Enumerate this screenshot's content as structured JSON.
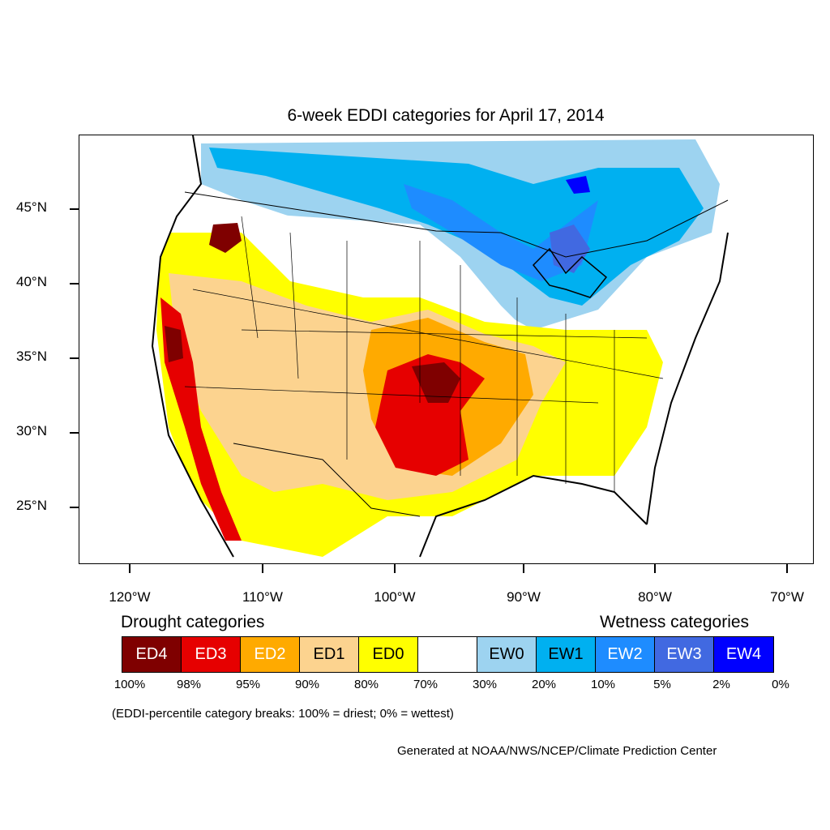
{
  "title": "6-week EDDI categories for April 17, 2014",
  "map": {
    "lat_labels": [
      "45°N",
      "40°N",
      "35°N",
      "30°N",
      "25°N"
    ],
    "lon_labels": [
      "120°W",
      "110°W",
      "100°W",
      "90°W",
      "80°W",
      "70°W"
    ]
  },
  "legend": {
    "drought_heading": "Drought categories",
    "wetness_heading": "Wetness categories",
    "categories": [
      {
        "label": "ED4",
        "color": "#7f0000",
        "text_color": "#ffffff"
      },
      {
        "label": "ED3",
        "color": "#e60000",
        "text_color": "#ffffff"
      },
      {
        "label": "ED2",
        "color": "#ffaa00",
        "text_color": "#ffffff"
      },
      {
        "label": "ED1",
        "color": "#fcd38f",
        "text_color": "#000000"
      },
      {
        "label": "ED0",
        "color": "#ffff00",
        "text_color": "#000000"
      },
      {
        "label": "",
        "color": "#ffffff",
        "text_color": "#000000"
      },
      {
        "label": "EW0",
        "color": "#9dd3f0",
        "text_color": "#000000"
      },
      {
        "label": "EW1",
        "color": "#00b0f0",
        "text_color": "#000000"
      },
      {
        "label": "EW2",
        "color": "#1e8cff",
        "text_color": "#ffffff"
      },
      {
        "label": "EW3",
        "color": "#4169e1",
        "text_color": "#ffffff"
      },
      {
        "label": "EW4",
        "color": "#0000ff",
        "text_color": "#ffffff"
      }
    ],
    "breaks": [
      "100%",
      "98%",
      "95%",
      "90%",
      "80%",
      "70%",
      "30%",
      "20%",
      "10%",
      "5%",
      "2%",
      "0%"
    ]
  },
  "note": "(EDDI-percentile category breaks: 100% = driest; 0% = wettest)",
  "credit": "Generated at NOAA/NWS/NCEP/Climate Prediction Center"
}
